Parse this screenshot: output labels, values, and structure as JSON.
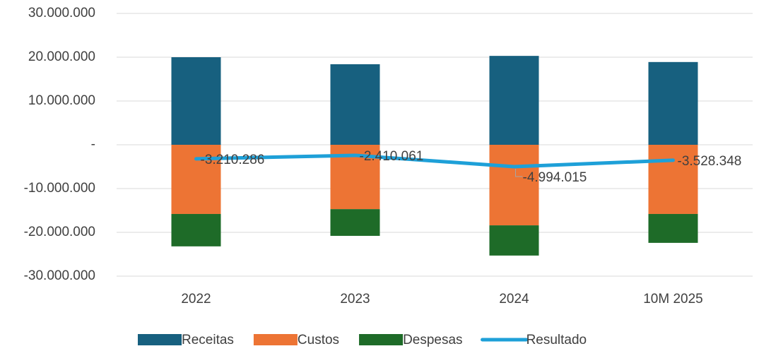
{
  "chart_data": {
    "type": "bar",
    "categories": [
      "2022",
      "2023",
      "2024",
      "10M 2025"
    ],
    "series": [
      {
        "name": "Receitas",
        "type": "bar",
        "color": "#17607f",
        "values": [
          20000000,
          18400000,
          20300000,
          18900000
        ]
      },
      {
        "name": "Custos",
        "type": "bar",
        "color": "#ed7434",
        "values": [
          -15800000,
          -14700000,
          -18400000,
          -15800000
        ]
      },
      {
        "name": "Despesas",
        "type": "bar",
        "color": "#1e6b28",
        "values": [
          -7400000,
          -6100000,
          -6900000,
          -6600000
        ]
      },
      {
        "name": "Resultado",
        "type": "line",
        "color": "#1ea0d8",
        "values": [
          -3210286,
          -2410061,
          -4994015,
          -3528348
        ],
        "value_labels": [
          "-3.210.286",
          "-2.410.061",
          "-4.994.015",
          "-3.528.348"
        ]
      }
    ],
    "ylim": [
      -30000000,
      30000000
    ],
    "yticks": [
      {
        "value": -30000000,
        "label": "-30.000.000"
      },
      {
        "value": -20000000,
        "label": "-20.000.000"
      },
      {
        "value": -10000000,
        "label": "-10.000.000"
      },
      {
        "value": 0,
        "label": "-"
      },
      {
        "value": 10000000,
        "label": "10.000.000"
      },
      {
        "value": 20000000,
        "label": "20.000.000"
      },
      {
        "value": 30000000,
        "label": "30.000.000"
      }
    ],
    "grid": true,
    "stacked": true,
    "legend": "bottom"
  }
}
